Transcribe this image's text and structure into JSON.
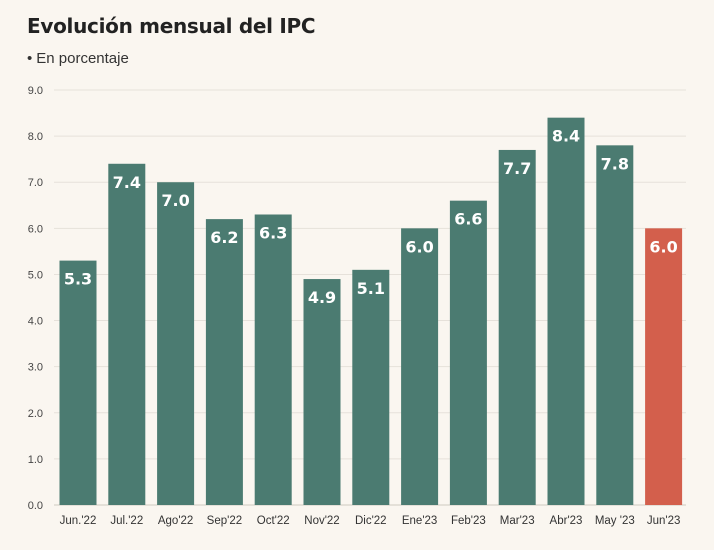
{
  "header": {
    "title": "Evolución mensual del IPC",
    "subtitle_bullet": "•",
    "subtitle": "En porcentaje"
  },
  "colors": {
    "bar": "#4b7b71",
    "highlight": "#d35f4c",
    "grid": "#e6e1da",
    "background": "#faf6f0"
  },
  "chart_data": {
    "type": "bar",
    "title": "Evolución mensual del IPC",
    "subtitle": "En porcentaje",
    "categories": [
      "Jun.'22",
      "Jul.'22",
      "Ago'22",
      "Sep'22",
      "Oct'22",
      "Nov'22",
      "Dic'22",
      "Ene'23",
      "Feb'23",
      "Mar'23",
      "Abr'23",
      "May '23",
      "Jun'23"
    ],
    "values": [
      5.3,
      7.4,
      7.0,
      6.2,
      6.3,
      4.9,
      5.1,
      6.0,
      6.6,
      7.7,
      8.4,
      7.8,
      6.0
    ],
    "data_labels": [
      "5.3",
      "7.4",
      "7.0",
      "6.2",
      "6.3",
      "4.9",
      "5.1",
      "6.0",
      "6.6",
      "7.7",
      "8.4",
      "7.8",
      "6.0"
    ],
    "highlight_index": 12,
    "ylim": [
      0,
      9
    ],
    "yticks": [
      "0.0",
      "1.0",
      "2.0",
      "3.0",
      "4.0",
      "5.0",
      "6.0",
      "7.0",
      "8.0",
      "9.0"
    ],
    "grid": true,
    "xlabel": "",
    "ylabel": ""
  }
}
